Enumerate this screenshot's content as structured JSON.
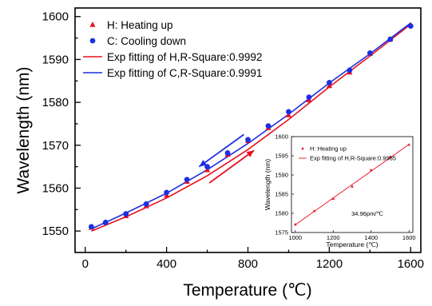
{
  "chart_data": [
    {
      "type": "scatter",
      "xlabel": "Temperature (℃)",
      "ylabel": "Wavelength (nm)",
      "xlim": [
        -50,
        1650
      ],
      "ylim": [
        1545,
        1602
      ],
      "xticks": [
        0,
        400,
        800,
        1200,
        1600
      ],
      "yticks": [
        1550,
        1560,
        1570,
        1580,
        1590,
        1600
      ],
      "legend_position": "top-left",
      "series": [
        {
          "name": "H: Heating up",
          "marker": "triangle",
          "color": "#e8101e",
          "x": [
            30,
            100,
            200,
            300,
            400,
            500,
            600,
            700,
            800,
            900,
            1000,
            1100,
            1200,
            1300,
            1400,
            1500,
            1600
          ],
          "y": [
            1550.8,
            1552.0,
            1553.5,
            1555.8,
            1558.3,
            1561.5,
            1564.2,
            1567.8,
            1571.0,
            1574.0,
            1577.0,
            1580.5,
            1583.8,
            1587.0,
            1591.3,
            1594.7,
            1598.0
          ]
        },
        {
          "name": "C: Cooling down",
          "marker": "circle",
          "color": "#1c2fe0",
          "x": [
            30,
            100,
            200,
            300,
            400,
            500,
            600,
            700,
            800,
            900,
            1000,
            1100,
            1200,
            1300,
            1400,
            1500,
            1600
          ],
          "y": [
            1551.0,
            1552.0,
            1554.0,
            1556.3,
            1559.0,
            1562.0,
            1565.0,
            1568.2,
            1571.3,
            1574.5,
            1577.8,
            1581.2,
            1584.6,
            1587.5,
            1591.5,
            1594.7,
            1597.8
          ]
        },
        {
          "name": "Exp fitting of H,R-Square:0.9992",
          "line": true,
          "color": "#e8101e",
          "x": [
            30,
            200,
            400,
            600,
            800,
            1000,
            1200,
            1400,
            1600
          ],
          "y": [
            1550.0,
            1553.3,
            1557.7,
            1562.9,
            1569.0,
            1576.0,
            1583.6,
            1590.8,
            1598.2
          ]
        },
        {
          "name": "Exp fitting of C,R-Square:0.9991",
          "line": true,
          "color": "#1c2fe0",
          "x": [
            30,
            200,
            400,
            600,
            800,
            1000,
            1200,
            1400,
            1600
          ],
          "y": [
            1550.5,
            1554.2,
            1558.8,
            1564.3,
            1570.4,
            1577.2,
            1584.5,
            1591.3,
            1598.5
          ]
        }
      ],
      "annotations": [
        {
          "type": "arrow",
          "color": "#1c2fe0",
          "from": [
            780,
            1572.5
          ],
          "to": [
            560,
            1565.0
          ]
        },
        {
          "type": "arrow",
          "color": "#e8101e",
          "from": [
            610,
            1561.2
          ],
          "to": [
            830,
            1568.8
          ]
        }
      ]
    },
    {
      "type": "scatter",
      "xlabel": "Temperature (℃)",
      "ylabel": "Wavelength (nm)",
      "xlim": [
        980,
        1620
      ],
      "ylim": [
        1575,
        1600
      ],
      "xticks": [
        1000,
        1200,
        1400,
        1600
      ],
      "yticks": [
        1575,
        1580,
        1585,
        1590,
        1595,
        1600
      ],
      "legend_position": "top-left",
      "annotation": "34.96pm/℃",
      "series": [
        {
          "name": "H: Heating up",
          "marker": "triangle",
          "color": "#e8101e",
          "x": [
            1000,
            1100,
            1200,
            1300,
            1400,
            1500,
            1600
          ],
          "y": [
            1577.1,
            1580.6,
            1583.8,
            1587.0,
            1591.3,
            1594.7,
            1597.9
          ]
        },
        {
          "name": "Exp fitting of H,R-Square:0.9985",
          "line": true,
          "color": "#e8101e",
          "x": [
            1000,
            1200,
            1400,
            1600
          ],
          "y": [
            1577.0,
            1584.0,
            1591.0,
            1598.0
          ]
        }
      ]
    }
  ]
}
